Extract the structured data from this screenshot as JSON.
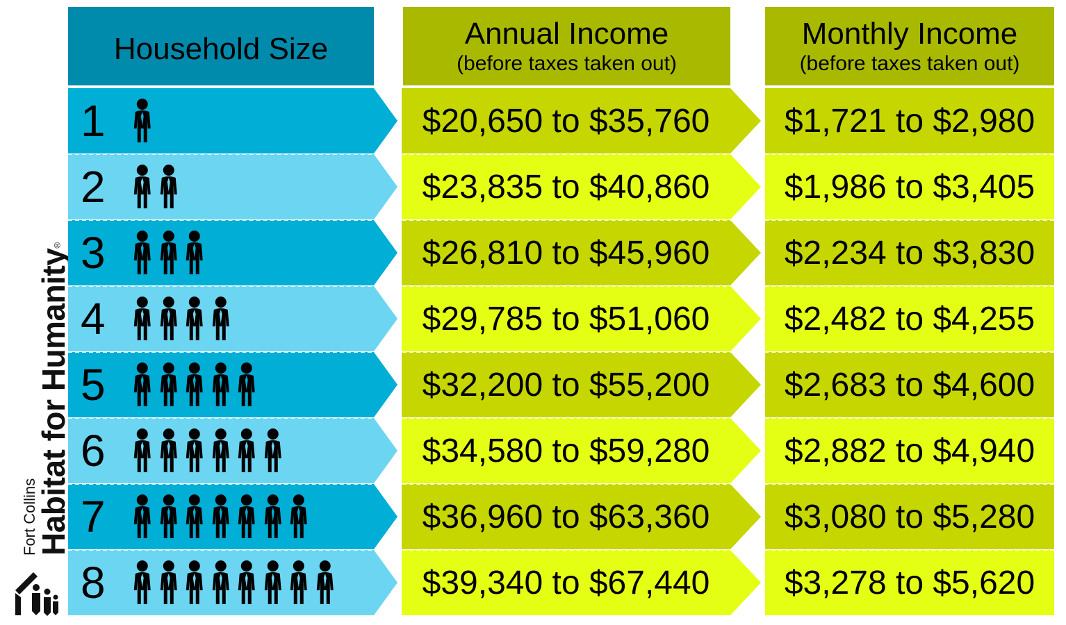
{
  "logo": {
    "city": "Fort Collins",
    "name": "Habitat for Humanity",
    "registered": "®"
  },
  "headers": {
    "household_size": "Household Size",
    "annual_title": "Annual Income",
    "annual_sub": "(before taxes taken out)",
    "monthly_title": "Monthly Income",
    "monthly_sub": "(before taxes taken out)"
  },
  "colors": {
    "size_header": "#008aac",
    "income_header": "#a9b900",
    "size_dark": "#00aed6",
    "size_light": "#6cd6f2",
    "income_dark": "#c5d600",
    "income_light": "#e5ff14"
  },
  "icons": {
    "person": "person-icon",
    "arrow": "chevron-arrow-icon"
  },
  "rows": [
    {
      "size": "1",
      "people": 1,
      "annual": "$20,650 to $35,760",
      "monthly": "$1,721 to $2,980"
    },
    {
      "size": "2",
      "people": 2,
      "annual": "$23,835 to $40,860",
      "monthly": "$1,986 to $3,405"
    },
    {
      "size": "3",
      "people": 3,
      "annual": "$26,810 to $45,960",
      "monthly": "$2,234 to $3,830"
    },
    {
      "size": "4",
      "people": 4,
      "annual": "$29,785 to $51,060",
      "monthly": "$2,482 to $4,255"
    },
    {
      "size": "5",
      "people": 5,
      "annual": "$32,200 to $55,200",
      "monthly": "$2,683 to $4,600"
    },
    {
      "size": "6",
      "people": 6,
      "annual": "$34,580 to $59,280",
      "monthly": "$2,882 to $4,940"
    },
    {
      "size": "7",
      "people": 7,
      "annual": "$36,960 to $63,360",
      "monthly": "$3,080 to $5,280"
    },
    {
      "size": "8",
      "people": 8,
      "annual": "$39,340 to $67,440",
      "monthly": "$3,278 to $5,620"
    }
  ]
}
